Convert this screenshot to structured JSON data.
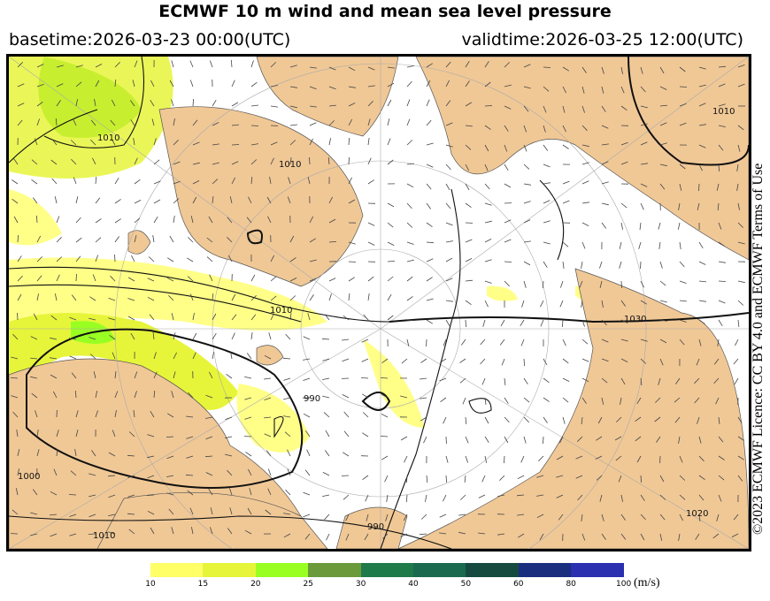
{
  "title": "ECMWF 10 m wind and mean sea level pressure",
  "basetime": "basetime:2026-03-23 00:00(UTC)",
  "validtime": "validtime:2026-03-25 12:00(UTC)",
  "licence": "©2023 ECMWF Licence: CC BY 4.0 and ECMWF Terms of Use",
  "isobar_labels": [
    "1010",
    "1010",
    "1010",
    "1010",
    "1030",
    "990",
    "1000",
    "990",
    "1020",
    "1010"
  ],
  "colorbar": {
    "unit": "(m/s)",
    "ticks": [
      "10",
      "15",
      "20",
      "25",
      "30",
      "40",
      "50",
      "60",
      "80",
      "100"
    ],
    "colors": [
      "#ffff66",
      "#e6f53a",
      "#99ff22",
      "#6a9a3a",
      "#1f7a4a",
      "#1a6a50",
      "#154a40",
      "#1a2e80",
      "#2a30b0"
    ]
  },
  "colors": {
    "land": "#f0c896",
    "sea": "#ffffff",
    "wind_light": "#ffff88",
    "wind_mid": "#d8f040"
  }
}
